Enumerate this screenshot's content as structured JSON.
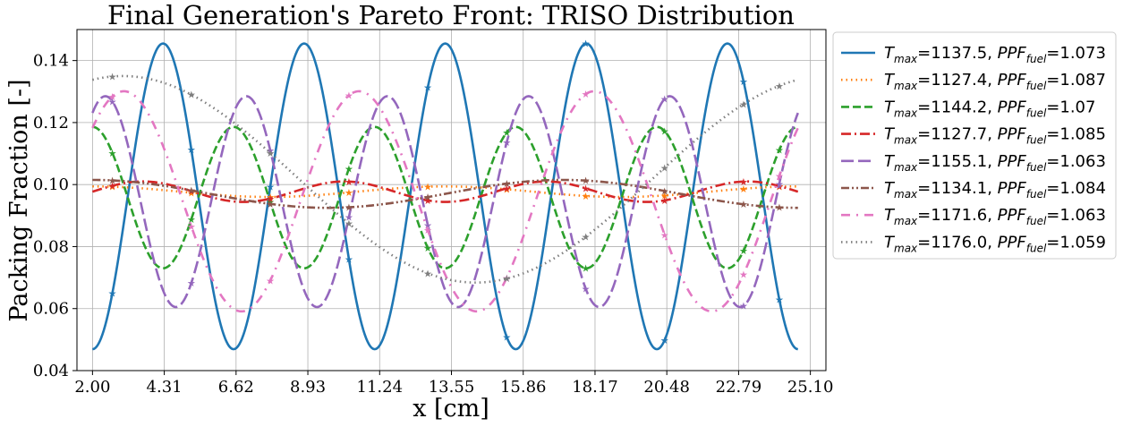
{
  "chart_data": {
    "type": "line",
    "title": "Final Generation's Pareto Front: TRISO Distribution",
    "xlabel": "x [cm]",
    "ylabel": "Packing Fraction [-]",
    "xlim": [
      1.5,
      25.6
    ],
    "ylim": [
      0.04,
      0.15
    ],
    "xticks": [
      "2.00",
      "4.31",
      "6.62",
      "8.93",
      "11.24",
      "13.55",
      "15.86",
      "18.17",
      "20.48",
      "22.79",
      "25.10"
    ],
    "yticks": [
      "0.04",
      "0.06",
      "0.08",
      "0.10",
      "0.12",
      "0.14"
    ],
    "grid": true,
    "legend_position": "outside-right",
    "x_range": [
      2.0,
      24.7
    ],
    "series": [
      {
        "t_max": "1137.5",
        "ppf_fuel": "1.073",
        "color": "#1f77b4",
        "style": "solid",
        "mean": 0.0962,
        "amp": 0.0493,
        "freq": 5.0,
        "phase": -1.5708,
        "marker_x": [
          2.64,
          5.18,
          7.72,
          10.25,
          12.79,
          15.33,
          17.87,
          20.41,
          22.95,
          24.1
        ]
      },
      {
        "t_max": "1127.4",
        "ppf_fuel": "1.087",
        "color": "#ff7f0e",
        "style": "dotted",
        "mean": 0.0977,
        "amp": 0.0017,
        "freq": 2.0,
        "phase": 1.5708,
        "marker_x": [
          2.64,
          5.18,
          7.72,
          10.25,
          12.79,
          15.33,
          17.87,
          20.41,
          22.95,
          24.1
        ]
      },
      {
        "t_max": "1144.2",
        "ppf_fuel": "1.07",
        "color": "#2ca02c",
        "style": "dashed",
        "mean": 0.0958,
        "amp": 0.0228,
        "freq": 5.0,
        "phase": 1.5708,
        "marker_x": [
          2.64,
          5.18,
          7.72,
          10.25,
          12.79,
          15.33,
          17.87,
          20.41,
          22.95,
          24.1
        ]
      },
      {
        "t_max": "1127.7",
        "ppf_fuel": "1.085",
        "color": "#d62728",
        "style": "dashdot",
        "mean": 0.0977,
        "amp": 0.0033,
        "freq": 3.5,
        "phase": 0.0,
        "marker_x": [
          2.64,
          5.18,
          7.72,
          10.25,
          12.79,
          15.33,
          17.87,
          20.41,
          22.95,
          24.1
        ]
      },
      {
        "t_max": "1155.1",
        "ppf_fuel": "1.063",
        "color": "#9467bd",
        "style": "longdash",
        "mean": 0.0945,
        "amp": 0.034,
        "freq": 5.0,
        "phase": 1.0,
        "marker_x": [
          2.64,
          5.18,
          7.72,
          10.25,
          12.79,
          15.33,
          17.87,
          20.41,
          22.95,
          24.1
        ]
      },
      {
        "t_max": "1134.1",
        "ppf_fuel": "1.084",
        "color": "#8c564b",
        "style": "dashdotdot",
        "mean": 0.097,
        "amp": 0.0045,
        "freq": 1.5,
        "phase": 1.5708,
        "marker_x": [
          2.64,
          5.18,
          7.72,
          10.25,
          12.79,
          15.33,
          17.87,
          20.41,
          22.95,
          24.1
        ]
      },
      {
        "t_max": "1171.6",
        "ppf_fuel": "1.063",
        "color": "#e377c2",
        "style": "loosedashdot",
        "mean": 0.0946,
        "amp": 0.0355,
        "freq": 3.0,
        "phase": 0.73,
        "marker_x": [
          2.64,
          5.18,
          7.72,
          10.25,
          12.79,
          15.33,
          17.87,
          20.41,
          22.95,
          24.1
        ]
      },
      {
        "t_max": "1176.0",
        "ppf_fuel": "1.059",
        "color": "#7f7f7f",
        "style": "dotted",
        "mean": 0.1017,
        "amp": 0.0333,
        "freq": 1.0,
        "phase": 1.3,
        "marker_x": [
          2.64,
          5.18,
          7.72,
          10.25,
          12.79,
          15.33,
          17.87,
          20.41,
          22.95,
          24.1
        ]
      }
    ]
  }
}
